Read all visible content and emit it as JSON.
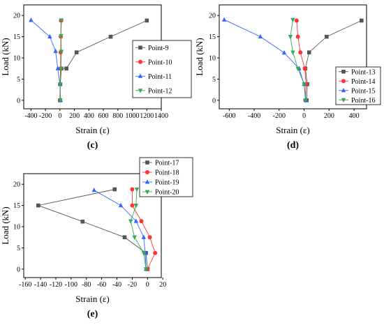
{
  "figure": {
    "panel_labels": [
      "(c)",
      "(d)",
      "(e)"
    ]
  },
  "chart_data": [
    {
      "type": "line",
      "panel": "(c)",
      "xlabel": "Strain (ε)",
      "ylabel": "Load (kN)",
      "xlim": [
        -500,
        1400
      ],
      "ylim": [
        -2,
        22.5
      ],
      "xticks": [
        -400,
        -200,
        0,
        200,
        400,
        600,
        800,
        1000,
        1200,
        1400
      ],
      "yticks": [
        0,
        5,
        10,
        15,
        20
      ],
      "grid": false,
      "legend_position": "right-middle",
      "series": [
        {
          "name": "Point-9",
          "color": "#555555",
          "marker": "square",
          "x": [
            0,
            5,
            20,
            90,
            230,
            700,
            1200
          ],
          "y": [
            0,
            3.8,
            7.5,
            7.5,
            11.3,
            15,
            18.8
          ]
        },
        {
          "name": "Point-10",
          "color": "#ff3333",
          "marker": "circle",
          "x": [
            0,
            2,
            8,
            10,
            12,
            15,
            18
          ],
          "y": [
            0,
            3.8,
            7.5,
            11.3,
            15,
            18.8,
            18.8
          ]
        },
        {
          "name": "Point-11",
          "color": "#3366ff",
          "marker": "triangle-up",
          "x": [
            10,
            0,
            -30,
            -60,
            -140,
            -400
          ],
          "y": [
            0,
            3.8,
            7.5,
            11.6,
            15,
            18.9
          ]
        },
        {
          "name": "Point-12",
          "color": "#33aa55",
          "marker": "triangle-down",
          "x": [
            5,
            2,
            15,
            20,
            15,
            20
          ],
          "y": [
            0,
            3.8,
            7.5,
            11.5,
            15.2,
            18.9
          ]
        }
      ]
    },
    {
      "type": "line",
      "panel": "(d)",
      "xlabel": "Strain (ε)",
      "ylabel": "Load (kN)",
      "xlim": [
        -680,
        500
      ],
      "ylim": [
        -2,
        22.5
      ],
      "xticks": [
        -600,
        -400,
        -200,
        0,
        200,
        400
      ],
      "yticks": [
        0,
        5,
        10,
        15,
        20
      ],
      "grid": false,
      "legend_position": "right-bottom",
      "series": [
        {
          "name": "Point-13",
          "color": "#555555",
          "marker": "square",
          "x": [
            20,
            25,
            10,
            40,
            180,
            460
          ],
          "y": [
            0,
            3.8,
            7.5,
            11.3,
            15,
            18.8
          ]
        },
        {
          "name": "Point-14",
          "color": "#ff3333",
          "marker": "circle",
          "x": [
            10,
            15,
            5,
            -30,
            -50,
            -60
          ],
          "y": [
            0,
            3.8,
            7.5,
            11.3,
            15,
            18.8
          ]
        },
        {
          "name": "Point-15",
          "color": "#3366ff",
          "marker": "triangle-up",
          "x": [
            15,
            0,
            -40,
            -160,
            -350,
            -640
          ],
          "y": [
            0,
            3.8,
            7.5,
            11.2,
            15,
            19
          ]
        },
        {
          "name": "Point-16",
          "color": "#33aa55",
          "marker": "triangle-down",
          "x": [
            10,
            0,
            -50,
            -90,
            -110,
            -90
          ],
          "y": [
            0,
            3.8,
            7.5,
            11.3,
            15,
            19
          ]
        }
      ]
    },
    {
      "type": "line",
      "panel": "(e)",
      "xlabel": "Strain (ε)",
      "ylabel": "Load (kN)",
      "xlim": [
        -162,
        18
      ],
      "ylim": [
        -2,
        22.5
      ],
      "xticks": [
        -160,
        -140,
        -120,
        -100,
        -80,
        -60,
        -40,
        -20,
        0,
        20
      ],
      "yticks": [
        0,
        5,
        10,
        15,
        20
      ],
      "grid": false,
      "legend_position": "top-right",
      "series": [
        {
          "name": "Point-17",
          "color": "#555555",
          "marker": "square",
          "x": [
            0,
            -2,
            -30,
            -85,
            -143,
            -43
          ],
          "y": [
            0,
            3.8,
            7.5,
            11.2,
            15,
            18.8
          ]
        },
        {
          "name": "Point-18",
          "color": "#ff3333",
          "marker": "circle",
          "x": [
            0,
            10,
            3,
            -8,
            -20,
            -20
          ],
          "y": [
            0,
            3.8,
            7.5,
            11.3,
            15,
            18.8
          ]
        },
        {
          "name": "Point-19",
          "color": "#3366ff",
          "marker": "triangle-up",
          "x": [
            -2,
            -3,
            -5,
            -15,
            -35,
            -70
          ],
          "y": [
            0,
            3.8,
            7.5,
            11.3,
            15,
            18.6
          ]
        },
        {
          "name": "Point-20",
          "color": "#33aa55",
          "marker": "triangle-down",
          "x": [
            -2,
            -5,
            -17,
            -22,
            -15,
            -14
          ],
          "y": [
            0,
            3.8,
            7.5,
            11.3,
            15,
            18.8
          ]
        }
      ]
    }
  ]
}
